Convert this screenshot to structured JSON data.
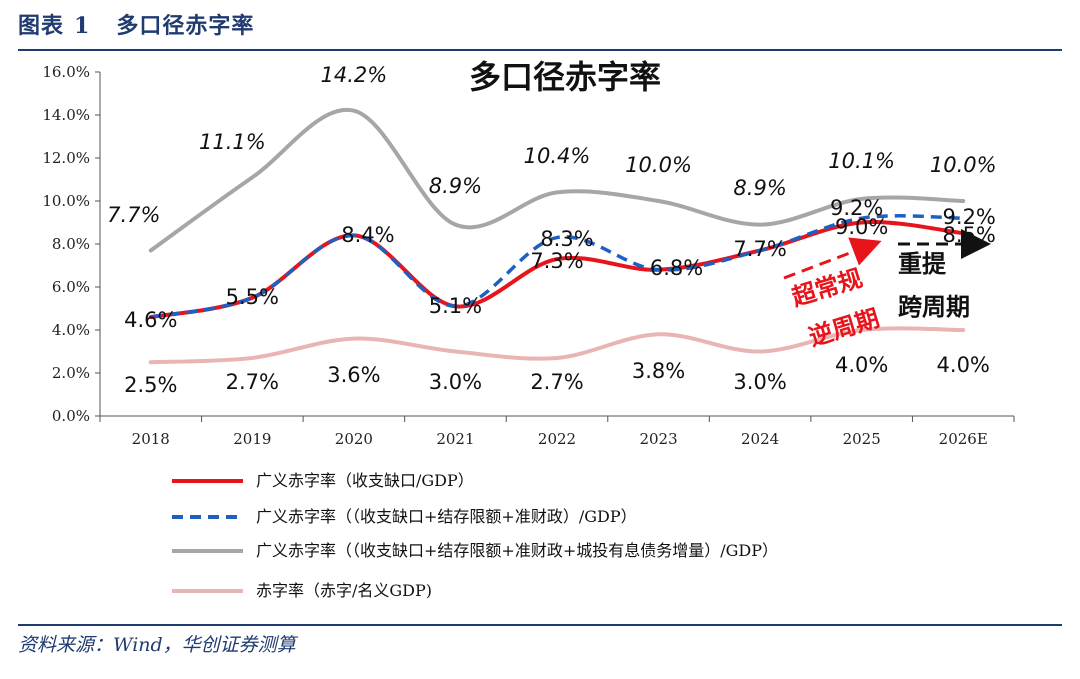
{
  "figure": {
    "label": "图表",
    "number": "1",
    "title": "多口径赤字率",
    "source": "资料来源：Wind，华创证券测算"
  },
  "chart_data": {
    "type": "line",
    "title": "多口径赤字率",
    "categories": [
      "2018",
      "2019",
      "2020",
      "2021",
      "2022",
      "2023",
      "2024",
      "2025",
      "2026E"
    ],
    "y_ticks": [
      "0.0%",
      "2.0%",
      "4.0%",
      "6.0%",
      "8.0%",
      "10.0%",
      "12.0%",
      "14.0%",
      "16.0%"
    ],
    "ylim": [
      0,
      16
    ],
    "legend_position": "bottom",
    "series": [
      {
        "name": "广义赤字率（收支缺口/GDP）",
        "color": "#e8141b",
        "style": "solid",
        "values": [
          4.6,
          5.5,
          8.4,
          5.1,
          7.3,
          6.8,
          7.7,
          9.0,
          8.5
        ],
        "labels": [
          "4.6%",
          "5.5%",
          "8.4%",
          "5.1%",
          "7.3%",
          "6.8%",
          "7.7%",
          "9.0%",
          "8.5%"
        ]
      },
      {
        "name": "广义赤字率（（收支缺口+结存限额+准财政）/GDP）",
        "color": "#1f5fbf",
        "style": "dashed",
        "values": [
          4.6,
          5.5,
          8.4,
          5.1,
          8.3,
          6.8,
          7.7,
          9.2,
          9.2
        ],
        "labels": [
          "",
          "",
          "",
          "",
          "8.3%",
          "",
          "",
          "9.2%",
          "9.2%"
        ]
      },
      {
        "name": "广义赤字率（（收支缺口+结存限额+准财政+城投有息债务增量）/GDP）",
        "color": "#a6a6a6",
        "style": "solid",
        "values": [
          7.7,
          11.1,
          14.2,
          8.9,
          10.4,
          10.0,
          8.9,
          10.1,
          10.0
        ],
        "labels": [
          "7.7%",
          "11.1%",
          "14.2%",
          "8.9%",
          "10.4%",
          "10.0%",
          "8.9%",
          "10.1%",
          "10.0%"
        ]
      },
      {
        "name": "赤字率（赤字/名义GDP)",
        "color": "#e8b4b4",
        "style": "solid",
        "values": [
          2.5,
          2.7,
          3.6,
          3.0,
          2.7,
          3.8,
          3.0,
          4.0,
          4.0
        ],
        "labels": [
          "2.5%",
          "2.7%",
          "3.6%",
          "3.0%",
          "2.7%",
          "3.8%",
          "3.0%",
          "4.0%",
          "4.0%"
        ]
      }
    ],
    "annotations": {
      "red_line1": "超常规",
      "red_line2": "逆周期",
      "black_line1": "重提",
      "black_line2": "跨周期"
    }
  }
}
